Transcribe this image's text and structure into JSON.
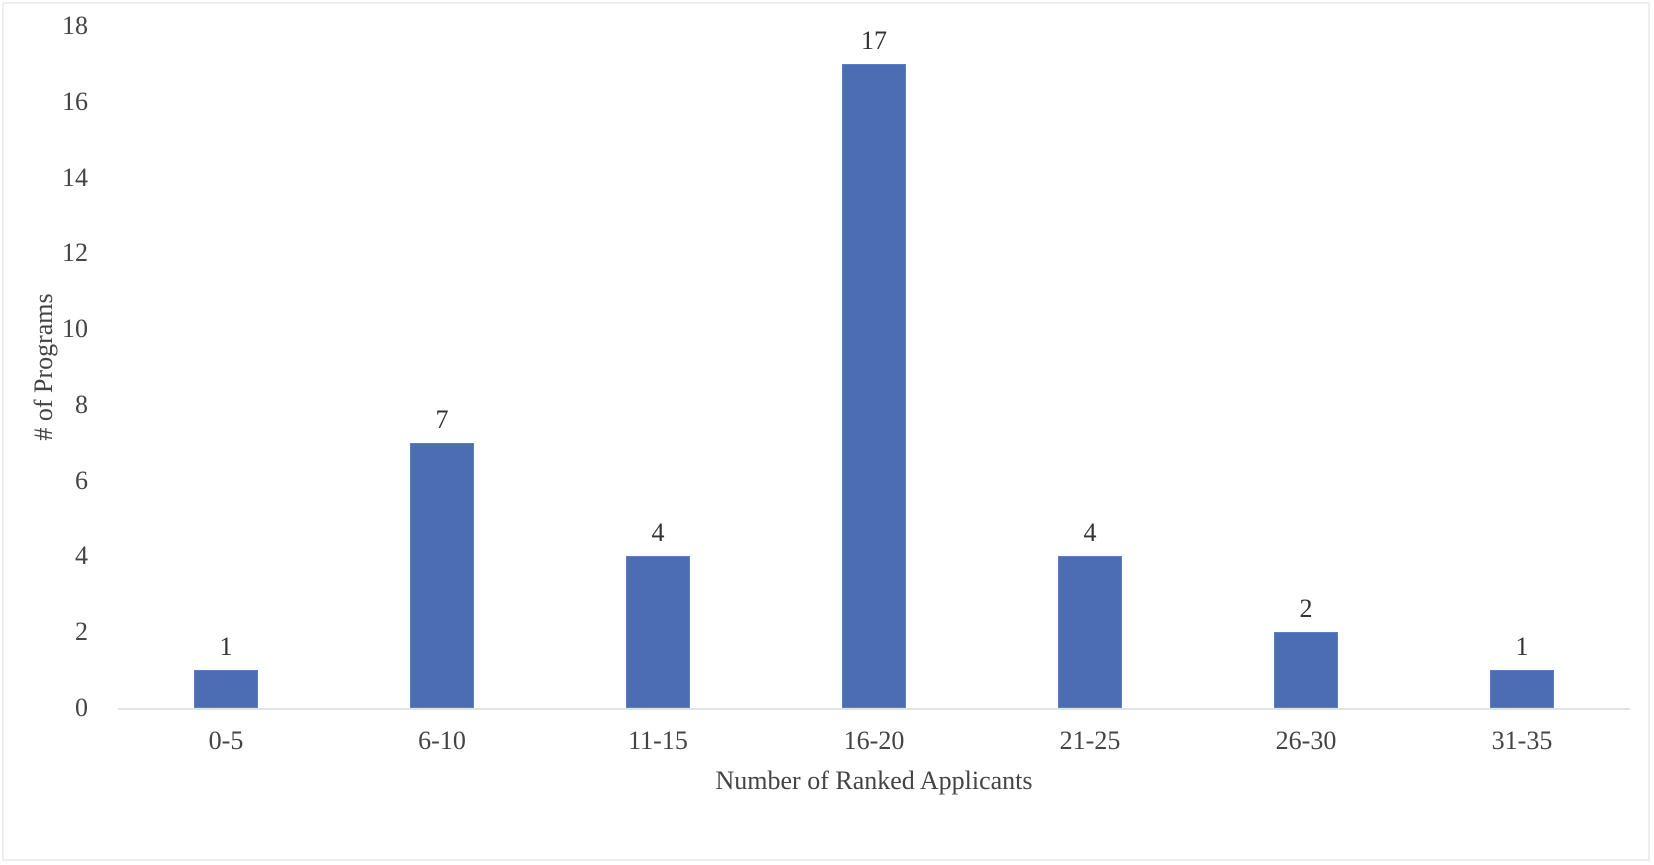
{
  "chart_data": {
    "type": "bar",
    "title": "",
    "xlabel": "Number of Ranked Applicants",
    "ylabel": "# of Programs",
    "categories": [
      "0-5",
      "6-10",
      "11-15",
      "16-20",
      "21-25",
      "26-30",
      "31-35"
    ],
    "values": [
      1,
      7,
      4,
      17,
      4,
      2,
      1
    ],
    "ylim": [
      0,
      18
    ],
    "yticks": [
      0,
      2,
      4,
      6,
      8,
      10,
      12,
      14,
      16,
      18
    ],
    "grid": false,
    "legend": null,
    "data_labels": true,
    "bar_color": "#4a6db4"
  },
  "axis": {
    "ytick_labels": [
      "0",
      "2",
      "4",
      "6",
      "8",
      "10",
      "12",
      "14",
      "16",
      "18"
    ],
    "xlabel": "Number of Ranked Applicants",
    "ylabel": "# of Programs"
  },
  "bars": [
    {
      "category": "0-5",
      "label": "1"
    },
    {
      "category": "6-10",
      "label": "7"
    },
    {
      "category": "11-15",
      "label": "4"
    },
    {
      "category": "16-20",
      "label": "17"
    },
    {
      "category": "21-25",
      "label": "4"
    },
    {
      "category": "26-30",
      "label": "2"
    },
    {
      "category": "31-35",
      "label": "1"
    }
  ]
}
